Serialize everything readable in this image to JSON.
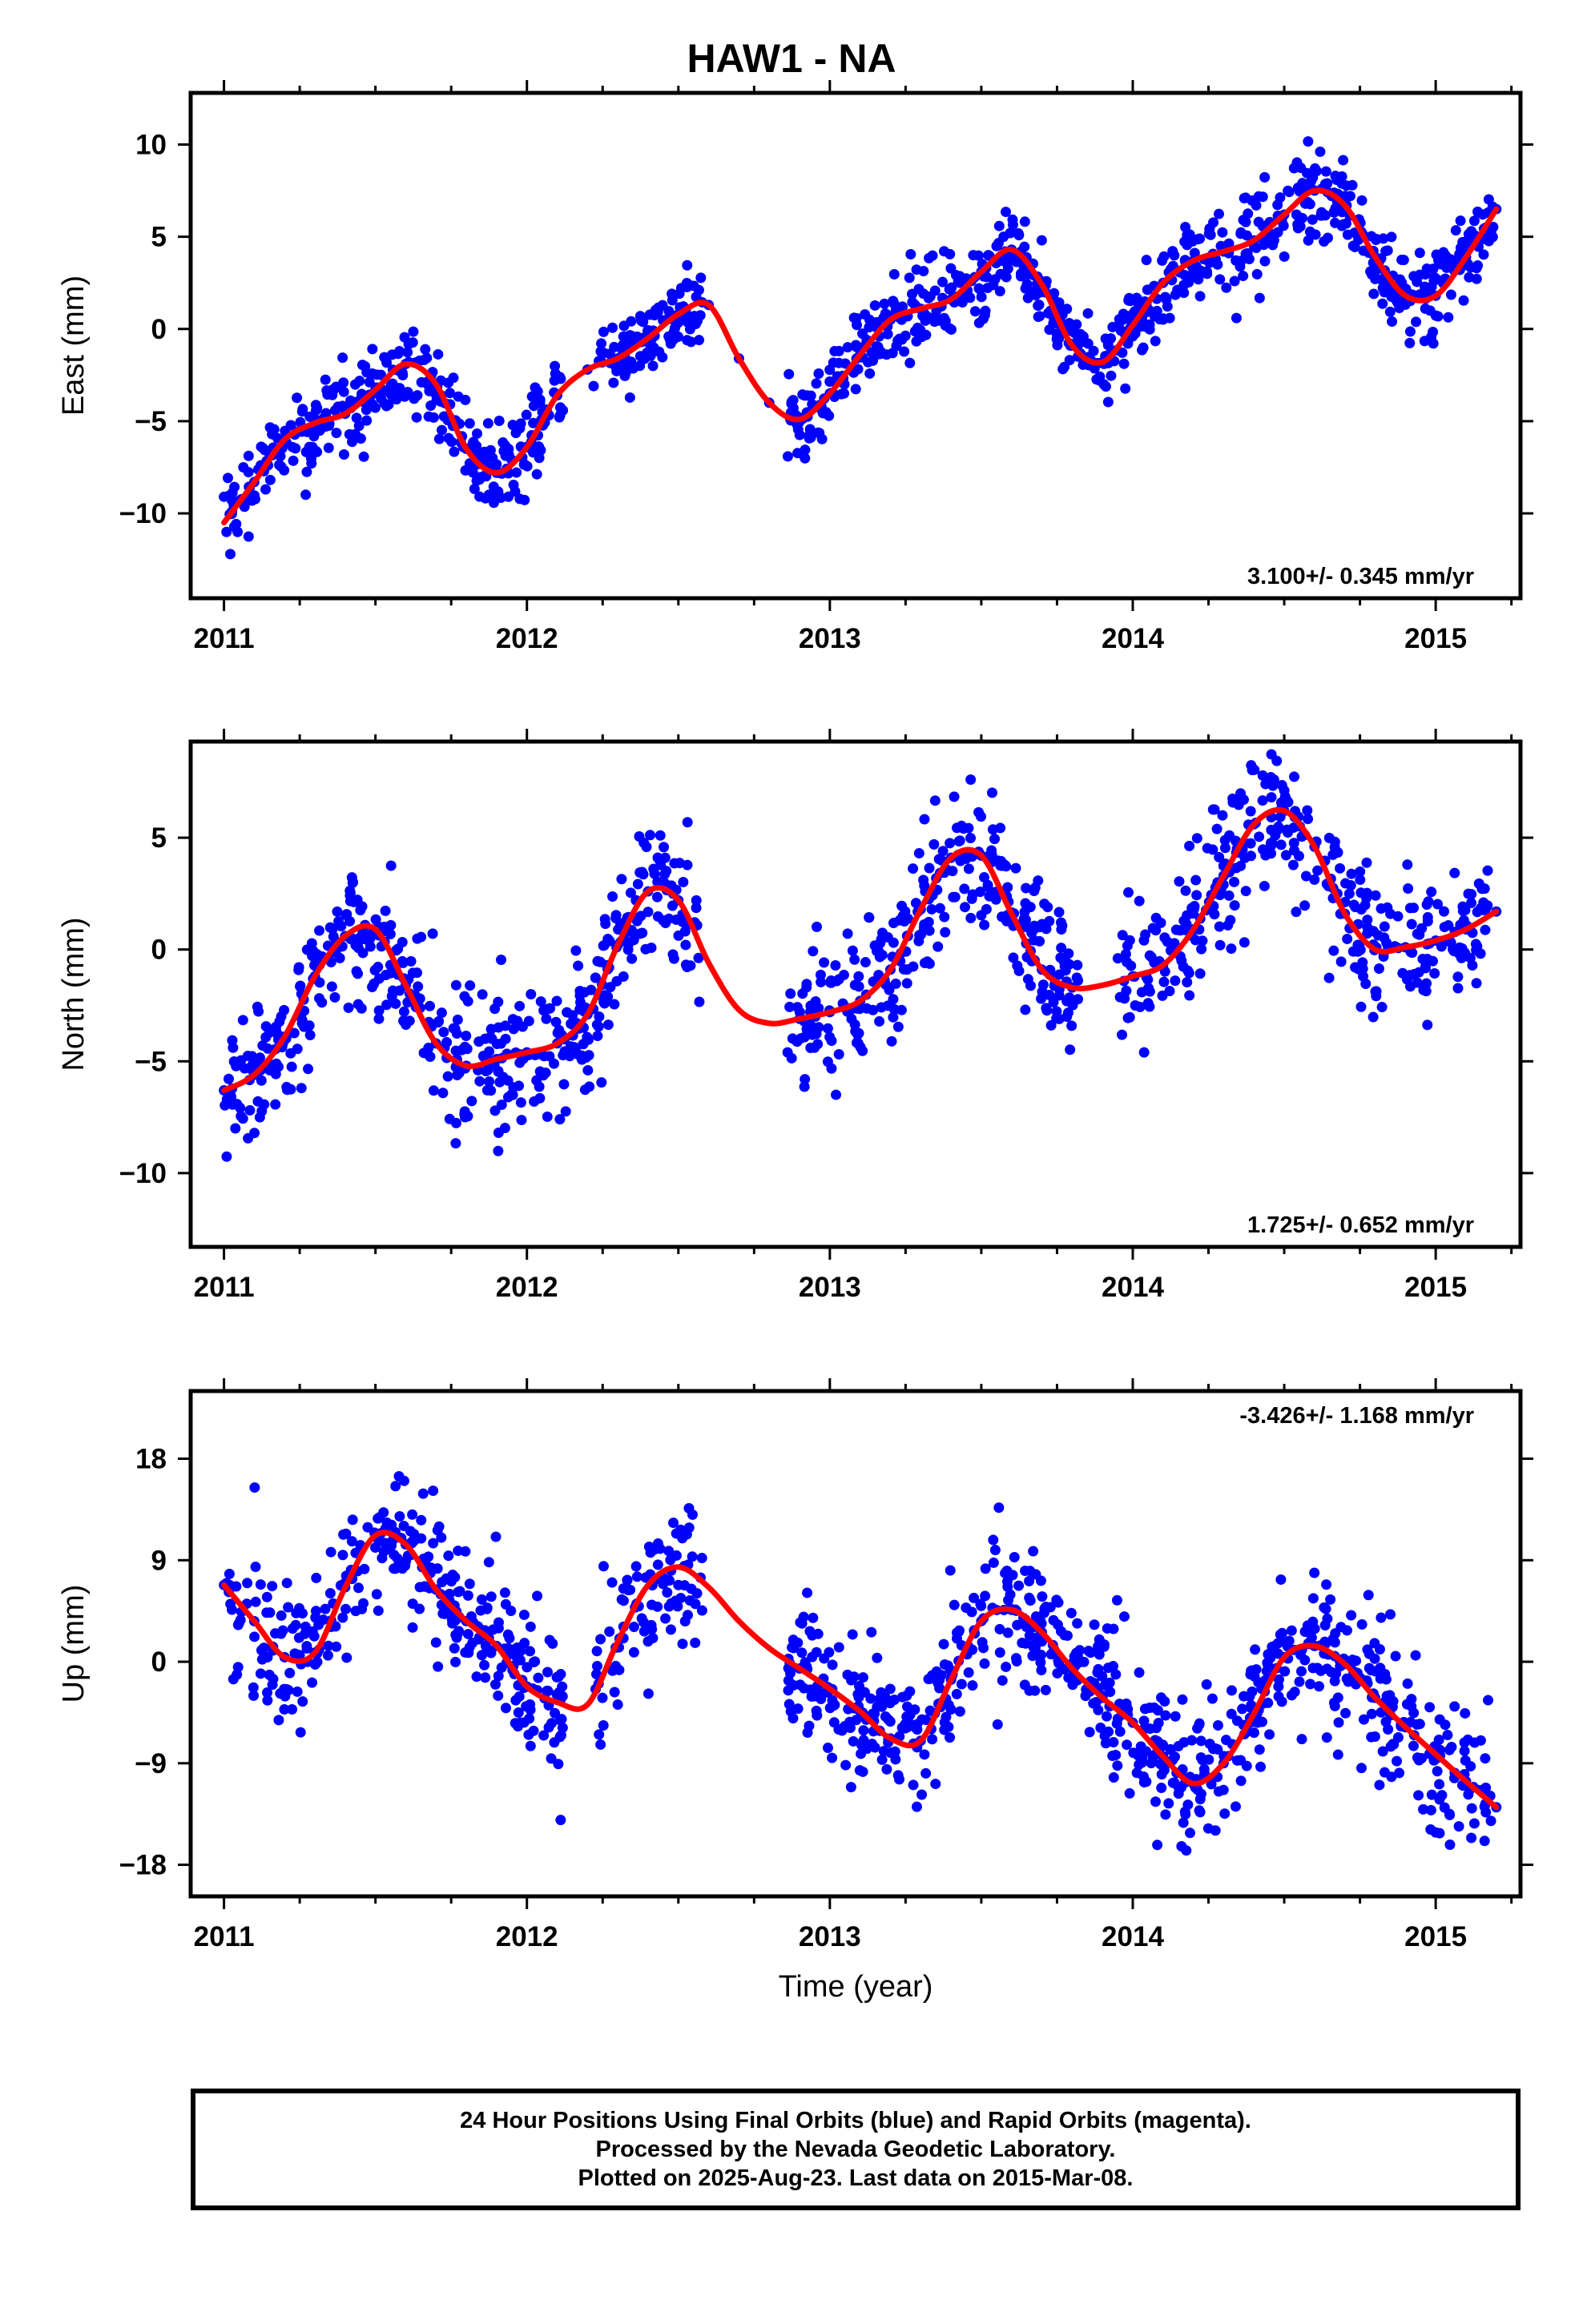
{
  "title": "HAW1 - NA",
  "footer": {
    "line1": "24 Hour Positions Using Final Orbits (blue) and Rapid Orbits (magenta).",
    "line2": "Processed by the Nevada Geodetic Laboratory.",
    "line3": "Plotted on 2025-Aug-23. Last data on 2015-Mar-08."
  },
  "colors": {
    "points": "#0000ff",
    "fit": "#ff0000",
    "axes": "#000000"
  },
  "chart_data": [
    {
      "type": "scatter",
      "name": "east",
      "ylabel": "East (mm)",
      "xlabel": "",
      "rate_text": "3.100+/- 0.345 mm/yr",
      "rate_position": "bottom-right",
      "xlim": [
        2010.89,
        2015.28
      ],
      "ylim": [
        -14.6,
        12.8
      ],
      "xticks": [
        2011,
        2012,
        2013,
        2014,
        2015
      ],
      "yticks": [
        -10,
        -5,
        0,
        5,
        10
      ],
      "grid": false,
      "fit": {
        "x": [
          2011.0,
          2011.1,
          2011.2,
          2011.3,
          2011.4,
          2011.5,
          2011.6,
          2011.7,
          2011.8,
          2011.9,
          2012.0,
          2012.1,
          2012.2,
          2012.3,
          2012.4,
          2012.5,
          2012.6,
          2012.7,
          2012.8,
          2012.9,
          2013.0,
          2013.1,
          2013.2,
          2013.3,
          2013.4,
          2013.5,
          2013.6,
          2013.7,
          2013.8,
          2013.9,
          2014.0,
          2014.1,
          2014.2,
          2014.3,
          2014.4,
          2014.5,
          2014.6,
          2014.7,
          2014.8,
          2014.9,
          2015.0,
          2015.1,
          2015.2
        ],
        "y": [
          -10.5,
          -8.3,
          -6.0,
          -5.1,
          -4.6,
          -3.3,
          -1.9,
          -3.0,
          -6.5,
          -7.8,
          -6.4,
          -3.6,
          -2.2,
          -1.6,
          -0.5,
          0.8,
          1.3,
          -1.6,
          -4.0,
          -4.9,
          -3.5,
          -1.4,
          0.5,
          1.1,
          1.6,
          3.1,
          4.3,
          2.4,
          -0.9,
          -1.8,
          0.2,
          2.5,
          3.7,
          4.2,
          4.8,
          6.2,
          7.5,
          6.7,
          3.9,
          1.8,
          1.8,
          3.9,
          6.5
        ]
      },
      "points": [
        [
          2011.0,
          -9.1
        ],
        [
          2011.1,
          -8.3
        ],
        [
          2011.2,
          -6.0
        ],
        [
          2011.3,
          -5.1
        ],
        [
          2011.4,
          -4.6
        ],
        [
          2011.5,
          -3.3
        ],
        [
          2011.6,
          -1.9
        ],
        [
          2011.7,
          -3.0
        ],
        [
          2011.8,
          -6.5
        ],
        [
          2011.9,
          -7.8
        ],
        [
          2012.0,
          -6.4
        ],
        [
          2012.1,
          -3.6
        ],
        [
          2012.2,
          -2.2
        ],
        [
          2012.3,
          -1.6
        ],
        [
          2012.4,
          -0.5
        ],
        [
          2012.5,
          0.8
        ],
        [
          2012.6,
          1.3
        ],
        [
          2012.7,
          -1.6
        ],
        [
          2012.8,
          -4.0
        ],
        [
          2012.9,
          -4.9
        ],
        [
          2013.0,
          -3.5
        ],
        [
          2013.1,
          -1.4
        ],
        [
          2013.2,
          0.5
        ],
        [
          2013.3,
          1.1
        ],
        [
          2013.4,
          1.6
        ],
        [
          2013.5,
          3.1
        ],
        [
          2013.6,
          4.3
        ],
        [
          2013.7,
          2.4
        ],
        [
          2013.8,
          -0.9
        ],
        [
          2013.9,
          -1.8
        ],
        [
          2014.0,
          0.2
        ],
        [
          2014.1,
          2.5
        ],
        [
          2014.2,
          3.7
        ],
        [
          2014.3,
          4.2
        ],
        [
          2014.4,
          4.8
        ],
        [
          2014.5,
          6.2
        ],
        [
          2014.6,
          7.5
        ],
        [
          2014.7,
          6.7
        ],
        [
          2014.8,
          3.9
        ],
        [
          2014.9,
          1.8
        ],
        [
          2015.0,
          1.8
        ],
        [
          2015.1,
          3.9
        ],
        [
          2015.2,
          6.5
        ]
      ]
    },
    {
      "type": "scatter",
      "name": "north",
      "ylabel": "North (mm)",
      "xlabel": "",
      "rate_text": "1.725+/- 0.652 mm/yr",
      "rate_position": "bottom-right",
      "xlim": [
        2010.89,
        2015.28
      ],
      "ylim": [
        -13.3,
        9.3
      ],
      "xticks": [
        2011,
        2012,
        2013,
        2014,
        2015
      ],
      "yticks": [
        -10,
        -5,
        0,
        5
      ],
      "grid": false,
      "fit": {
        "x": [
          2011.0,
          2011.1,
          2011.2,
          2011.3,
          2011.4,
          2011.5,
          2011.6,
          2011.7,
          2011.8,
          2011.9,
          2012.0,
          2012.1,
          2012.2,
          2012.3,
          2012.4,
          2012.5,
          2012.6,
          2012.7,
          2012.8,
          2012.9,
          2013.0,
          2013.1,
          2013.2,
          2013.3,
          2013.4,
          2013.5,
          2013.6,
          2013.7,
          2013.8,
          2013.9,
          2014.0,
          2014.1,
          2014.2,
          2014.3,
          2014.4,
          2014.5,
          2014.6,
          2014.7,
          2014.8,
          2014.9,
          2015.0,
          2015.1,
          2015.2
        ],
        "y": [
          -6.3,
          -5.6,
          -3.9,
          -1.2,
          0.6,
          0.9,
          -1.6,
          -4.2,
          -5.2,
          -4.9,
          -4.6,
          -4.2,
          -2.9,
          0.2,
          2.6,
          2.2,
          -0.6,
          -2.7,
          -3.3,
          -3.1,
          -2.8,
          -2.3,
          -0.9,
          1.8,
          4.1,
          4.2,
          1.6,
          -0.9,
          -1.7,
          -1.6,
          -1.2,
          -0.7,
          0.9,
          3.3,
          5.6,
          6.2,
          4.6,
          1.6,
          0.0,
          0.1,
          0.4,
          0.9,
          1.7
        ]
      },
      "points": [
        [
          2011.0,
          -6.3
        ],
        [
          2011.1,
          -5.6
        ],
        [
          2011.2,
          -3.9
        ],
        [
          2011.3,
          -1.2
        ],
        [
          2011.4,
          0.6
        ],
        [
          2011.5,
          0.9
        ],
        [
          2011.6,
          -1.6
        ],
        [
          2011.7,
          -4.2
        ],
        [
          2011.8,
          -5.2
        ],
        [
          2011.9,
          -4.9
        ],
        [
          2012.0,
          -4.6
        ],
        [
          2012.1,
          -4.2
        ],
        [
          2012.2,
          -2.9
        ],
        [
          2012.3,
          0.2
        ],
        [
          2012.4,
          2.6
        ],
        [
          2012.5,
          2.2
        ],
        [
          2012.9,
          -3.1
        ],
        [
          2013.0,
          -2.8
        ],
        [
          2013.1,
          -2.3
        ],
        [
          2013.2,
          -0.9
        ],
        [
          2013.3,
          1.8
        ],
        [
          2013.4,
          4.1
        ],
        [
          2013.5,
          4.2
        ],
        [
          2013.6,
          1.6
        ],
        [
          2013.7,
          -0.9
        ],
        [
          2013.8,
          -1.7
        ],
        [
          2014.0,
          -1.2
        ],
        [
          2014.1,
          -0.7
        ],
        [
          2014.2,
          0.9
        ],
        [
          2014.3,
          3.3
        ],
        [
          2014.4,
          5.6
        ],
        [
          2014.5,
          6.2
        ],
        [
          2014.6,
          4.6
        ],
        [
          2014.7,
          1.6
        ],
        [
          2014.8,
          0.0
        ],
        [
          2014.9,
          0.1
        ],
        [
          2015.0,
          0.4
        ],
        [
          2015.1,
          0.9
        ],
        [
          2015.2,
          1.7
        ]
      ]
    },
    {
      "type": "scatter",
      "name": "up",
      "ylabel": "Up (mm)",
      "xlabel": "Time (year)",
      "rate_text": "-3.426+/- 1.168 mm/yr",
      "rate_position": "top-right",
      "xlim": [
        2010.89,
        2015.28
      ],
      "ylim": [
        -20.8,
        24.0
      ],
      "xticks": [
        2011,
        2012,
        2013,
        2014,
        2015
      ],
      "yticks": [
        -18,
        -9,
        0,
        9,
        18
      ],
      "grid": false,
      "fit": {
        "x": [
          2011.0,
          2011.1,
          2011.2,
          2011.3,
          2011.4,
          2011.5,
          2011.6,
          2011.7,
          2011.8,
          2011.9,
          2012.0,
          2012.1,
          2012.2,
          2012.3,
          2012.4,
          2012.5,
          2012.6,
          2012.7,
          2012.8,
          2012.9,
          2013.0,
          2013.1,
          2013.2,
          2013.3,
          2013.4,
          2013.5,
          2013.6,
          2013.7,
          2013.8,
          2013.9,
          2014.0,
          2014.1,
          2014.2,
          2014.3,
          2014.4,
          2014.5,
          2014.6,
          2014.7,
          2014.8,
          2014.9,
          2015.0,
          2015.1,
          2015.2
        ],
        "y": [
          6.8,
          3.6,
          0.4,
          0.8,
          6.6,
          11.2,
          10.4,
          6.4,
          3.6,
          1.4,
          -2.2,
          -3.6,
          -3.8,
          1.8,
          6.8,
          8.4,
          6.6,
          3.6,
          1.2,
          -0.6,
          -2.4,
          -4.4,
          -6.8,
          -7.0,
          -1.6,
          3.6,
          4.6,
          2.6,
          -0.6,
          -3.2,
          -5.4,
          -8.4,
          -10.8,
          -9.0,
          -4.6,
          0.4,
          1.4,
          -0.2,
          -3.2,
          -5.8,
          -8.2,
          -10.6,
          -12.9
        ]
      },
      "points": [
        [
          2011.0,
          6.8
        ],
        [
          2011.1,
          3.6
        ],
        [
          2011.2,
          0.4
        ],
        [
          2011.3,
          0.8
        ],
        [
          2011.4,
          6.6
        ],
        [
          2011.5,
          11.2
        ],
        [
          2011.6,
          10.4
        ],
        [
          2011.7,
          6.4
        ],
        [
          2011.8,
          3.6
        ],
        [
          2011.9,
          1.4
        ],
        [
          2012.0,
          -2.2
        ],
        [
          2012.3,
          -3.8
        ],
        [
          2012.4,
          1.8
        ],
        [
          2012.5,
          6.8
        ],
        [
          2012.9,
          -0.6
        ],
        [
          2013.0,
          -2.4
        ],
        [
          2013.1,
          -4.4
        ],
        [
          2013.2,
          -6.8
        ],
        [
          2013.3,
          -7.0
        ],
        [
          2013.4,
          -1.6
        ],
        [
          2013.5,
          3.6
        ],
        [
          2013.6,
          4.6
        ],
        [
          2013.7,
          2.6
        ],
        [
          2013.8,
          -0.6
        ],
        [
          2013.9,
          -3.2
        ],
        [
          2014.0,
          -5.4
        ],
        [
          2014.1,
          -8.4
        ],
        [
          2014.2,
          -10.8
        ],
        [
          2014.3,
          -9.0
        ],
        [
          2014.4,
          -4.6
        ],
        [
          2014.5,
          0.4
        ],
        [
          2014.6,
          1.4
        ],
        [
          2014.7,
          -0.2
        ],
        [
          2014.8,
          -3.2
        ],
        [
          2014.9,
          -5.8
        ],
        [
          2015.0,
          -8.2
        ],
        [
          2015.1,
          -10.6
        ],
        [
          2015.2,
          -12.9
        ]
      ]
    }
  ]
}
